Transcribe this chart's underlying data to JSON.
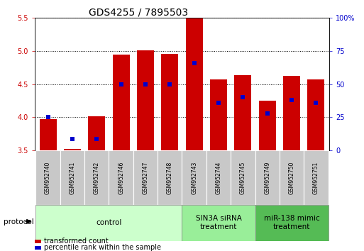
{
  "title": "GDS4255 / 7895503",
  "samples": [
    "GSM952740",
    "GSM952741",
    "GSM952742",
    "GSM952746",
    "GSM952747",
    "GSM952748",
    "GSM952743",
    "GSM952744",
    "GSM952745",
    "GSM952749",
    "GSM952750",
    "GSM952751"
  ],
  "transformed_counts": [
    3.97,
    3.53,
    4.02,
    4.94,
    5.01,
    4.95,
    5.5,
    4.57,
    4.63,
    4.25,
    4.62,
    4.57
  ],
  "percentile_ranks_pct": [
    25,
    9,
    9,
    50,
    50,
    50,
    66,
    36,
    40,
    28,
    38,
    36
  ],
  "ylim_left": [
    3.5,
    5.5
  ],
  "ylim_right": [
    0,
    100
  ],
  "yticks_left": [
    3.5,
    4.0,
    4.5,
    5.0,
    5.5
  ],
  "yticks_right": [
    0,
    25,
    50,
    75,
    100
  ],
  "bar_color": "#CC0000",
  "dot_color": "#0000CC",
  "bar_width": 0.7,
  "groups": [
    {
      "label": "control",
      "start": 0,
      "end": 5,
      "color": "#ccffcc",
      "edgecolor": "#aaddaa"
    },
    {
      "label": "SIN3A siRNA\ntreatment",
      "start": 6,
      "end": 8,
      "color": "#99ee99",
      "edgecolor": "#77cc77"
    },
    {
      "label": "miR-138 mimic\ntreatment",
      "start": 9,
      "end": 11,
      "color": "#55bb55",
      "edgecolor": "#33aa33"
    }
  ],
  "protocol_label": "protocol",
  "legend_items": [
    {
      "color": "#CC0000",
      "label": "transformed count"
    },
    {
      "color": "#0000CC",
      "label": "percentile rank within the sample"
    }
  ],
  "title_fontsize": 10,
  "tick_fontsize": 7,
  "sample_fontsize": 5.5,
  "group_label_fontsize": 7.5,
  "legend_fontsize": 7,
  "left_tick_color": "#CC0000",
  "right_tick_color": "#0000CC",
  "bg_color": "#ffffff"
}
